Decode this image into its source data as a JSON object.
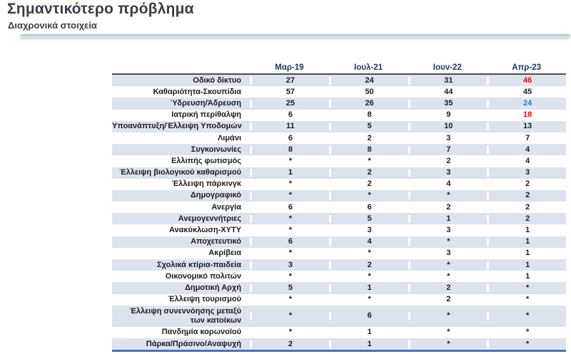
{
  "header": {
    "title": "Σημαντικότερο πρόβλημα",
    "subtitle": "Διαχρονικά στοιχεία"
  },
  "colors": {
    "divider_teal": "#9cc4cd",
    "row_alt_background": "#dce3ef",
    "column_header_text": "#1f3864",
    "table_bottom_border": "#4472c4",
    "header_underline": "#4d4d4d",
    "highlight_red": "#ff0000",
    "highlight_blue": "#2e75d6"
  },
  "chart_data": {
    "type": "table",
    "title": "Σημαντικότερο πρόβλημα",
    "subtitle": "Διαχρονικά στοιχεία",
    "columns": [
      "Μαρ-19",
      "Ιουλ-21",
      "Ιουν-22",
      "Απρ-23"
    ],
    "missing_value_symbol": "*",
    "rows": [
      {
        "label": "Οδικό δίκτυο",
        "values": [
          "27",
          "24",
          "31",
          "46"
        ],
        "value_colors": [
          null,
          null,
          null,
          "red"
        ]
      },
      {
        "label": "Καθαριότητα-Σκουπίδια",
        "values": [
          "57",
          "50",
          "44",
          "45"
        ],
        "value_colors": [
          null,
          null,
          null,
          null
        ]
      },
      {
        "label": "Ύδρευση/Άδρευση",
        "values": [
          "25",
          "26",
          "35",
          "24"
        ],
        "value_colors": [
          null,
          null,
          null,
          "blue"
        ]
      },
      {
        "label": "Ιατρική περίθαλψη",
        "values": [
          "6",
          "8",
          "9",
          "18"
        ],
        "value_colors": [
          null,
          null,
          null,
          "red"
        ]
      },
      {
        "label": "Υποανάπτυξη/Έλλειψη Υποδομών",
        "values": [
          "11",
          "5",
          "10",
          "13"
        ],
        "value_colors": [
          null,
          null,
          null,
          null
        ]
      },
      {
        "label": "Λιμάνι",
        "values": [
          "6",
          "2",
          "3",
          "7"
        ],
        "value_colors": [
          null,
          null,
          null,
          null
        ]
      },
      {
        "label": "Συγκοινωνίες",
        "values": [
          "8",
          "8",
          "7",
          "4"
        ],
        "value_colors": [
          null,
          null,
          null,
          null
        ]
      },
      {
        "label": "Ελλιπής φωτισμός",
        "values": [
          "*",
          "*",
          "2",
          "4"
        ],
        "value_colors": [
          null,
          null,
          null,
          null
        ]
      },
      {
        "label": "Έλλειψη βιολογικού καθαρισμού",
        "values": [
          "1",
          "2",
          "3",
          "3"
        ],
        "value_colors": [
          null,
          null,
          null,
          null
        ]
      },
      {
        "label": "Έλλειψη πάρκινγκ",
        "values": [
          "*",
          "2",
          "4",
          "2"
        ],
        "value_colors": [
          null,
          null,
          null,
          null
        ]
      },
      {
        "label": "Δημογραφικό",
        "values": [
          "*",
          "*",
          "*",
          "2"
        ],
        "value_colors": [
          null,
          null,
          null,
          null
        ]
      },
      {
        "label": "Ανεργία",
        "values": [
          "6",
          "6",
          "2",
          "2"
        ],
        "value_colors": [
          null,
          null,
          null,
          null
        ]
      },
      {
        "label": "Ανεμογεννήτριες",
        "values": [
          "*",
          "5",
          "1",
          "2"
        ],
        "value_colors": [
          null,
          null,
          null,
          null
        ]
      },
      {
        "label": "Ανακύκλωση-ΧΥΤΥ",
        "values": [
          "*",
          "3",
          "3",
          "1"
        ],
        "value_colors": [
          null,
          null,
          null,
          null
        ]
      },
      {
        "label": "Αποχετευτικό",
        "values": [
          "6",
          "4",
          "*",
          "1"
        ],
        "value_colors": [
          null,
          null,
          null,
          null
        ]
      },
      {
        "label": "Ακρίβεια",
        "values": [
          "*",
          "*",
          "3",
          "1"
        ],
        "value_colors": [
          null,
          null,
          null,
          null
        ]
      },
      {
        "label": "Σχολικά κτίρια-παιδεία",
        "values": [
          "3",
          "2",
          "*",
          "1"
        ],
        "value_colors": [
          null,
          null,
          null,
          null
        ]
      },
      {
        "label": "Οικονομικό πολιτών",
        "values": [
          "*",
          "*",
          "*",
          "1"
        ],
        "value_colors": [
          null,
          null,
          null,
          null
        ]
      },
      {
        "label": "Δημοτική Αρχή",
        "values": [
          "5",
          "1",
          "2",
          "*"
        ],
        "value_colors": [
          null,
          null,
          null,
          null
        ]
      },
      {
        "label": "Έλλειψη τουρισμού",
        "values": [
          "*",
          "*",
          "2",
          "*"
        ],
        "value_colors": [
          null,
          null,
          null,
          null
        ]
      },
      {
        "label": "Έλλειψη συνεννόησης μεταξύ\nτων κατοίκων",
        "values": [
          "*",
          "6",
          "*",
          "*"
        ],
        "value_colors": [
          null,
          null,
          null,
          null
        ]
      },
      {
        "label": "Πανδημία κορωνοϊού",
        "values": [
          "*",
          "1",
          "*",
          "*"
        ],
        "value_colors": [
          null,
          null,
          null,
          null
        ]
      },
      {
        "label": "Πάρκα/Πράσινο/Αναψυχή",
        "values": [
          "2",
          "1",
          "*",
          "*"
        ],
        "value_colors": [
          null,
          null,
          null,
          null
        ]
      }
    ]
  }
}
